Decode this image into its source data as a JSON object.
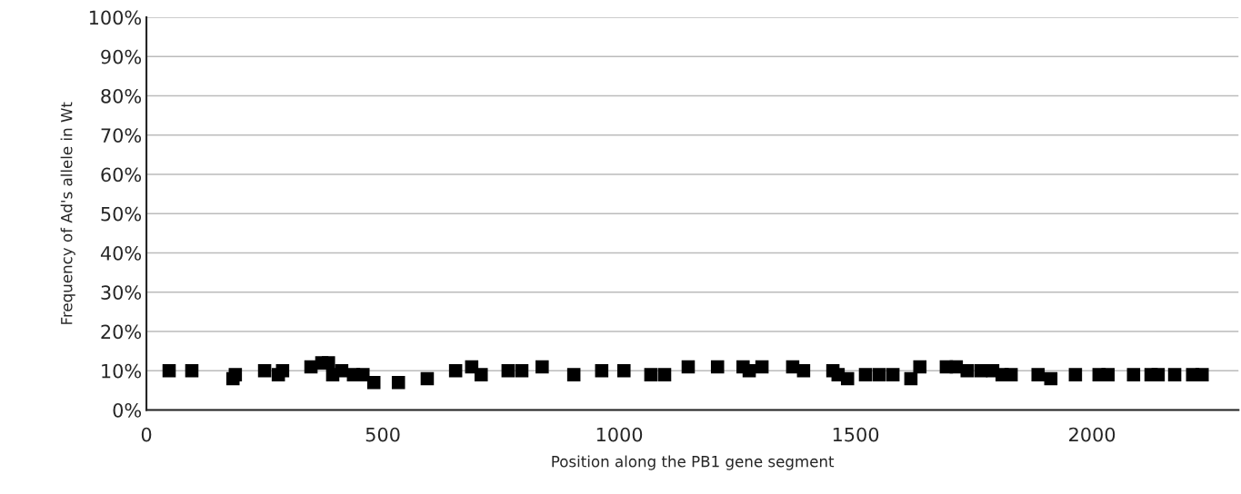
{
  "chart_data": {
    "type": "scatter",
    "xlabel": "Position along the PB1 gene segment",
    "ylabel": "Frequency of Ad's allele in Wt",
    "x": [
      48,
      96,
      183,
      188,
      250,
      279,
      288,
      348,
      371,
      385,
      394,
      413,
      438,
      458,
      481,
      533,
      594,
      654,
      688,
      708,
      765,
      794,
      837,
      904,
      963,
      1010,
      1067,
      1096,
      1146,
      1208,
      1262,
      1275,
      1302,
      1367,
      1390,
      1452,
      1463,
      1483,
      1521,
      1550,
      1579,
      1617,
      1636,
      1692,
      1713,
      1736,
      1765,
      1790,
      1810,
      1829,
      1886,
      1913,
      1965,
      2015,
      2034,
      2088,
      2125,
      2140,
      2175,
      2213,
      2233
    ],
    "values": [
      10,
      10,
      8,
      9,
      10,
      9,
      10,
      11,
      12,
      12,
      9,
      10,
      9,
      9,
      7,
      7,
      8,
      10,
      11,
      9,
      10,
      10,
      11,
      9,
      10,
      10,
      9,
      9,
      11,
      11,
      11,
      10,
      11,
      11,
      10,
      10,
      9,
      8,
      9,
      9,
      9,
      8,
      11,
      11,
      11,
      10,
      10,
      10,
      9,
      9,
      9,
      8,
      9,
      9,
      9,
      9,
      9,
      9,
      9,
      9,
      9
    ],
    "color": "#000000",
    "marker": "square",
    "xlim": [
      0,
      2310
    ],
    "xticks": [
      0,
      500,
      1000,
      1500,
      2000
    ],
    "ylim": [
      0,
      100
    ],
    "yticks": [
      {
        "value": 0,
        "label": "0%"
      },
      {
        "value": 10,
        "label": "10%"
      },
      {
        "value": 20,
        "label": "20%"
      },
      {
        "value": 30,
        "label": "30%"
      },
      {
        "value": 40,
        "label": "40%"
      },
      {
        "value": 50,
        "label": "50%"
      },
      {
        "value": 60,
        "label": "60%"
      },
      {
        "value": 70,
        "label": "70%"
      },
      {
        "value": 80,
        "label": "80%"
      },
      {
        "value": 90,
        "label": "90%"
      },
      {
        "value": 100,
        "label": "100%"
      }
    ],
    "grid": "y"
  }
}
